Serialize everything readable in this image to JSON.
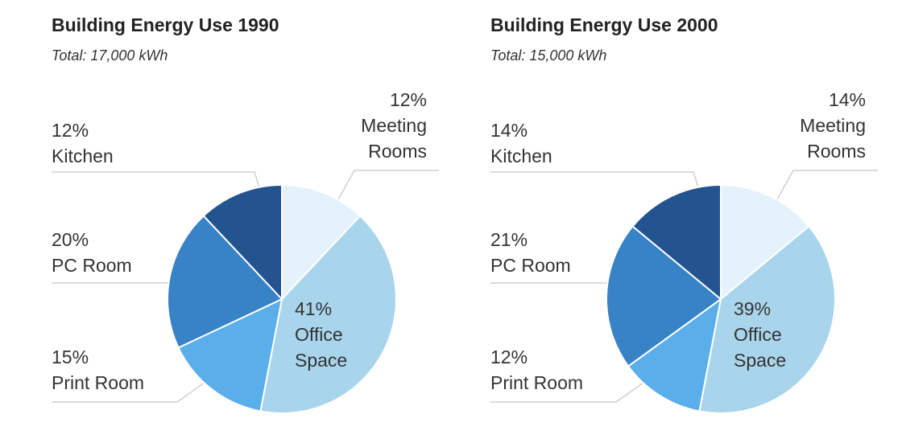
{
  "chart_data": [
    {
      "type": "pie",
      "title": "Building Energy Use 1990",
      "subtitle": "Total: 17,000 kWh",
      "slices": [
        {
          "label": "Meeting Rooms",
          "value": 12,
          "label_text": "12%",
          "label_lines": [
            "Meeting",
            "Rooms"
          ],
          "color": "#e4f2fb"
        },
        {
          "label": "Office Space",
          "value": 41,
          "label_text": "41%",
          "label_lines": [
            "Office",
            "Space"
          ],
          "color": "#a9d5ec"
        },
        {
          "label": "Print Room",
          "value": 15,
          "label_text": "15%",
          "label_lines": [
            "Print Room"
          ],
          "color": "#5aaeea"
        },
        {
          "label": "PC Room",
          "value": 20,
          "label_text": "20%",
          "label_lines": [
            "PC Room"
          ],
          "color": "#3882c6"
        },
        {
          "label": "Kitchen",
          "value": 12,
          "label_text": "12%",
          "label_lines": [
            "Kitchen"
          ],
          "color": "#23548f"
        }
      ]
    },
    {
      "type": "pie",
      "title": "Building Energy Use 2000",
      "subtitle": "Total: 15,000 kWh",
      "slices": [
        {
          "label": "Meeting Rooms",
          "value": 14,
          "label_text": "14%",
          "label_lines": [
            "Meeting",
            "Rooms"
          ],
          "color": "#e4f2fb"
        },
        {
          "label": "Office Space",
          "value": 39,
          "label_text": "39%",
          "label_lines": [
            "Office",
            "Space"
          ],
          "color": "#a9d5ec"
        },
        {
          "label": "Print Room",
          "value": 12,
          "label_text": "12%",
          "label_lines": [
            "Print Room"
          ],
          "color": "#5aaeea"
        },
        {
          "label": "PC Room",
          "value": 21,
          "label_text": "21%",
          "label_lines": [
            "PC Room"
          ],
          "color": "#3882c6"
        },
        {
          "label": "Kitchen",
          "value": 14,
          "label_text": "14%",
          "label_lines": [
            "Kitchen"
          ],
          "color": "#23548f"
        }
      ]
    }
  ]
}
